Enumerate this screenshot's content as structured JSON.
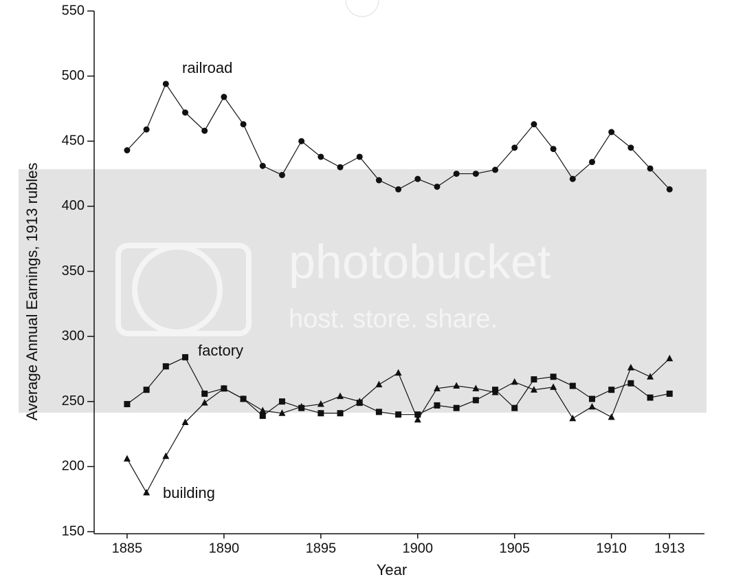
{
  "chart_data": {
    "type": "line",
    "y_label": "Average Annual Earnings, 1913 rubles",
    "x_label": "Year",
    "x": [
      1885,
      1886,
      1887,
      1888,
      1889,
      1890,
      1891,
      1892,
      1893,
      1894,
      1895,
      1896,
      1897,
      1898,
      1899,
      1900,
      1901,
      1902,
      1903,
      1904,
      1905,
      1906,
      1907,
      1908,
      1909,
      1910,
      1911,
      1912,
      1913
    ],
    "series": [
      {
        "name": "railroad",
        "color": "#111111",
        "marker": "circle",
        "values": [
          443,
          459,
          494,
          472,
          458,
          484,
          463,
          431,
          424,
          450,
          438,
          430,
          438,
          420,
          413,
          421,
          415,
          425,
          425,
          428,
          445,
          463,
          444,
          421,
          434,
          457,
          445,
          429,
          413
        ]
      },
      {
        "name": "factory",
        "color": "#111111",
        "marker": "square",
        "values": [
          248,
          259,
          277,
          284,
          256,
          260,
          252,
          239,
          250,
          245,
          241,
          241,
          249,
          242,
          240,
          240,
          247,
          245,
          251,
          259,
          245,
          267,
          269,
          262,
          252,
          259,
          264,
          253,
          256
        ]
      },
      {
        "name": "building",
        "color": "#111111",
        "marker": "triangle",
        "values": [
          206,
          180,
          208,
          234,
          249,
          260,
          252,
          243,
          241,
          246,
          248,
          254,
          250,
          263,
          272,
          236,
          260,
          262,
          260,
          257,
          265,
          259,
          261,
          237,
          246,
          238,
          276,
          269,
          283
        ]
      }
    ],
    "xlim": [
      1883.3,
      1914.8
    ],
    "ylim": [
      150,
      550
    ],
    "xticks": [
      1885,
      1890,
      1895,
      1900,
      1905,
      1910,
      1913
    ],
    "yticks": [
      150,
      200,
      250,
      300,
      350,
      400,
      450,
      500,
      550
    ],
    "grid": false
  },
  "watermark": {
    "logo": "photobucket",
    "tagline": "host. store. share."
  }
}
